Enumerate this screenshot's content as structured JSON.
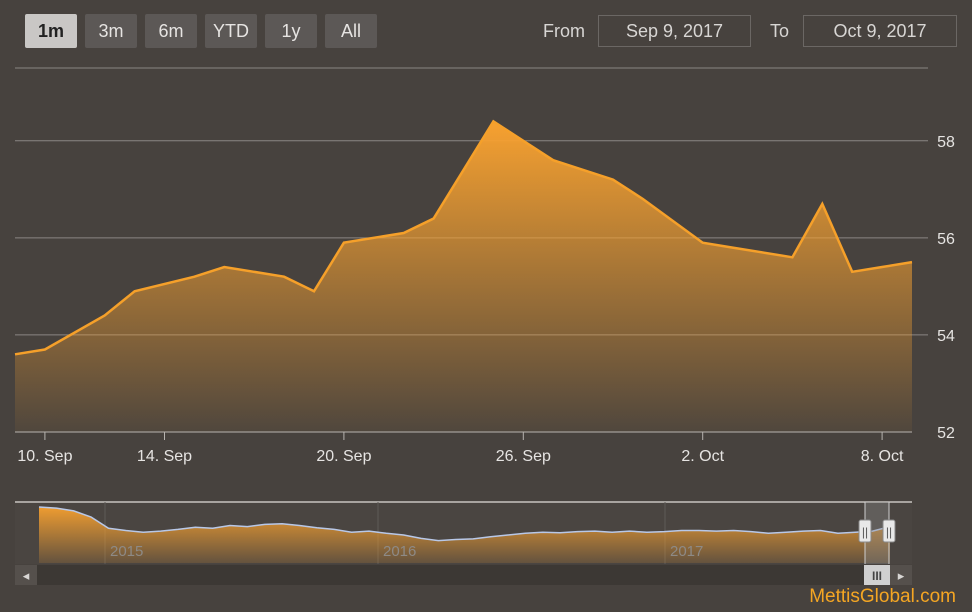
{
  "range_selector": {
    "buttons": [
      {
        "label": "1m",
        "active": true
      },
      {
        "label": "3m",
        "active": false
      },
      {
        "label": "6m",
        "active": false
      },
      {
        "label": "YTD",
        "active": false
      },
      {
        "label": "1y",
        "active": false
      },
      {
        "label": "All",
        "active": false
      }
    ]
  },
  "date_inputs": {
    "from_label": "From",
    "from_value": "Sep 9, 2017",
    "to_label": "To",
    "to_value": "Oct 9, 2017"
  },
  "colors": {
    "background": "#47423e",
    "series": "#f5a02a",
    "grid": "#8a8683"
  },
  "chart_data": {
    "type": "area",
    "x": [
      "2017-09-09",
      "2017-09-10",
      "2017-09-12",
      "2017-09-13",
      "2017-09-15",
      "2017-09-16",
      "2017-09-18",
      "2017-09-19",
      "2017-09-20",
      "2017-09-22",
      "2017-09-23",
      "2017-09-25",
      "2017-09-26",
      "2017-09-27",
      "2017-09-29",
      "2017-09-30",
      "2017-10-02",
      "2017-10-03",
      "2017-10-05",
      "2017-10-06",
      "2017-10-07",
      "2017-10-08",
      "2017-10-09"
    ],
    "values": [
      53.6,
      53.7,
      54.4,
      54.9,
      55.2,
      55.4,
      55.2,
      54.9,
      55.9,
      56.1,
      56.4,
      58.4,
      58.0,
      57.6,
      57.2,
      56.8,
      55.9,
      55.8,
      55.6,
      56.7,
      55.3,
      55.4,
      55.5
    ],
    "ylim": [
      52,
      59.5
    ],
    "yticks": [
      52,
      54,
      56,
      58
    ],
    "xticks": [
      {
        "date": "2017-09-10",
        "label": "10. Sep"
      },
      {
        "date": "2017-09-14",
        "label": "14. Sep"
      },
      {
        "date": "2017-09-20",
        "label": "20. Sep"
      },
      {
        "date": "2017-09-26",
        "label": "26. Sep"
      },
      {
        "date": "2017-10-02",
        "label": "2. Oct"
      },
      {
        "date": "2017-10-08",
        "label": "8. Oct"
      }
    ],
    "grid": true,
    "navigator": {
      "year_labels": [
        "2015",
        "2016",
        "2017"
      ],
      "values": [
        1.0,
        0.98,
        0.93,
        0.82,
        0.62,
        0.58,
        0.55,
        0.57,
        0.6,
        0.64,
        0.62,
        0.67,
        0.65,
        0.69,
        0.7,
        0.67,
        0.63,
        0.6,
        0.55,
        0.57,
        0.53,
        0.5,
        0.44,
        0.4,
        0.42,
        0.43,
        0.47,
        0.5,
        0.53,
        0.55,
        0.54,
        0.56,
        0.57,
        0.55,
        0.57,
        0.55,
        0.56,
        0.58,
        0.58,
        0.57,
        0.58,
        0.56,
        0.53,
        0.55,
        0.57,
        0.58,
        0.53,
        0.55,
        0.57,
        0.65
      ]
    }
  },
  "scrollbar": {
    "left_arrow": "◂",
    "right_arrow": "▸",
    "grip": "III",
    "handle_grip": "||"
  },
  "brand": "MettisGlobal.com"
}
